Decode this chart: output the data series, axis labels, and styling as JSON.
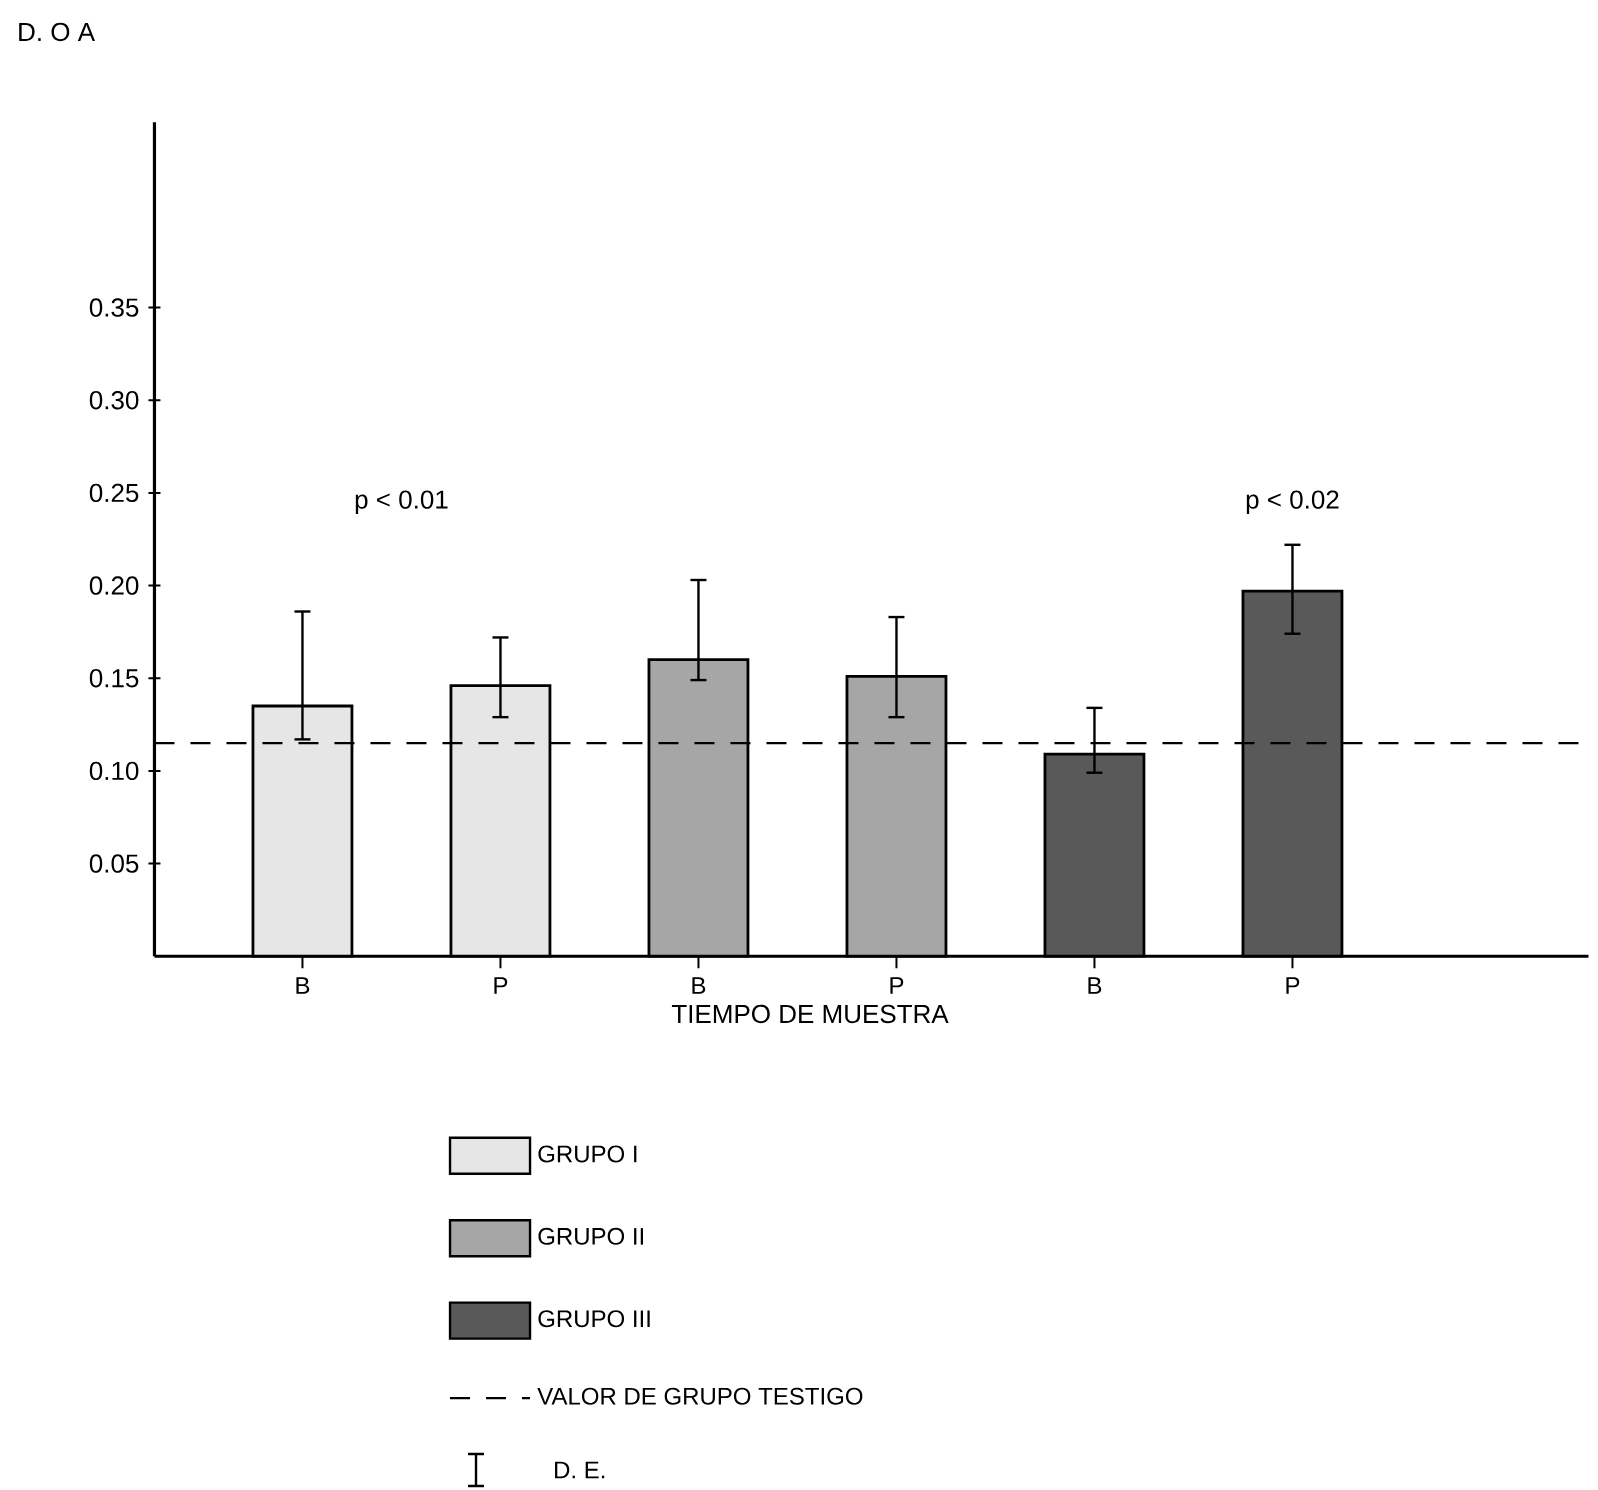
{
  "chart_data": {
    "type": "bar",
    "xlabel": "TIEMPO DE MUESTRA",
    "ylabel": "D. O A",
    "categories": [
      "B",
      "P",
      "B",
      "P",
      "B",
      "P"
    ],
    "series": [
      {
        "name": "GRUPO I",
        "color": "#e6e6e6",
        "values": [
          0.135,
          0.146,
          null,
          null,
          null,
          null
        ],
        "errors": [
          [
            0.117,
            0.186
          ],
          [
            0.129,
            0.172
          ],
          null,
          null,
          null,
          null
        ]
      },
      {
        "name": "GRUPO II",
        "color": "#a6a6a6",
        "values": [
          null,
          null,
          0.16,
          0.151,
          null,
          null
        ],
        "errors": [
          null,
          null,
          [
            0.149,
            0.203
          ],
          [
            0.129,
            0.183
          ],
          null,
          null
        ]
      },
      {
        "name": "GRUPO III",
        "color": "#595959",
        "values": [
          null,
          null,
          null,
          null,
          0.109,
          0.197
        ],
        "errors": [
          null,
          null,
          null,
          null,
          [
            0.099,
            0.134
          ],
          [
            0.174,
            0.222
          ]
        ]
      }
    ],
    "ylim": [
      0,
      0.45
    ],
    "yticks": [
      0.05,
      {
        "value": 0.1,
        "label": "0.10"
      },
      0.15,
      {
        "value": 0.2,
        "label": "0.20"
      },
      0.25,
      {
        "value": 0.3,
        "label": "0.30"
      },
      0.35
    ],
    "ref_lines": [
      {
        "axis": "y",
        "value": 0.115,
        "label": "VALOR DE GRUPO TESTIGO",
        "line_style": "dashed"
      }
    ],
    "annotations": [
      "p < 0.01",
      "p < 0.02",
      "D. E."
    ],
    "legend": "bottom"
  }
}
